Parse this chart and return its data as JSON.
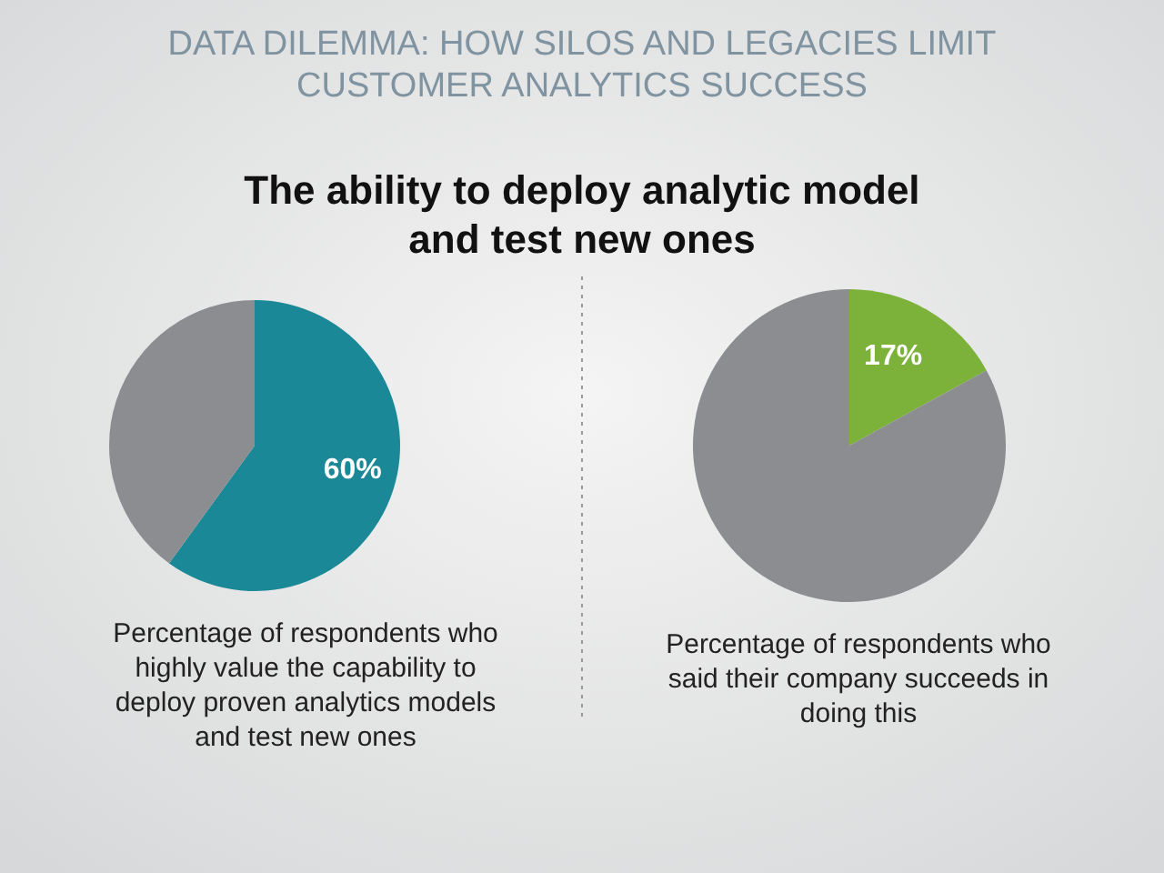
{
  "chart_data": [
    {
      "type": "pie",
      "title": "DATA DILEMMA: HOW SILOS AND LEGACIES LIMIT CUSTOMER ANALYTICS SUCCESS",
      "subtitle": "The ability to deploy analytic model and test new ones",
      "categories": [
        null,
        null
      ],
      "values": [
        60,
        40
      ],
      "colors": [
        "#1b8898",
        "#8c8d90"
      ],
      "value_labels": [
        "60%",
        null
      ],
      "annotations": [
        "Percentage of respondents who highly value the capability to deploy proven analytics models and test new ones"
      ]
    },
    {
      "type": "pie",
      "categories": [
        null,
        null
      ],
      "values": [
        17,
        83
      ],
      "colors": [
        "#7cb13a",
        "#8c8d90"
      ],
      "value_labels": [
        "17%",
        null
      ],
      "annotations": [
        "Percentage of respondents who said their company succeeds in doing this"
      ]
    }
  ]
}
